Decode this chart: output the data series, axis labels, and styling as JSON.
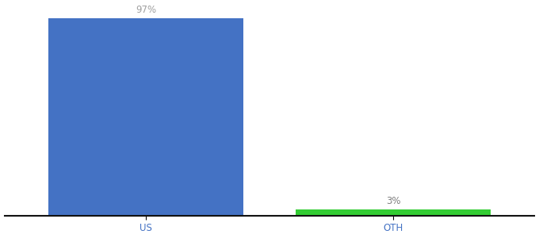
{
  "categories": [
    "US",
    "OTH"
  ],
  "values": [
    97,
    3
  ],
  "bar_colors": [
    "#4472c4",
    "#33cc33"
  ],
  "label_colors": [
    "#a0a0a0",
    "#808080"
  ],
  "labels": [
    "97%",
    "3%"
  ],
  "background_color": "#ffffff",
  "ylim": [
    0,
    100
  ],
  "bar_width": 0.55,
  "label_fontsize": 8.5,
  "tick_fontsize": 8.5,
  "tick_color": "#4472c4",
  "axis_line_color": "#111111",
  "x_positions": [
    0.3,
    1.0
  ]
}
